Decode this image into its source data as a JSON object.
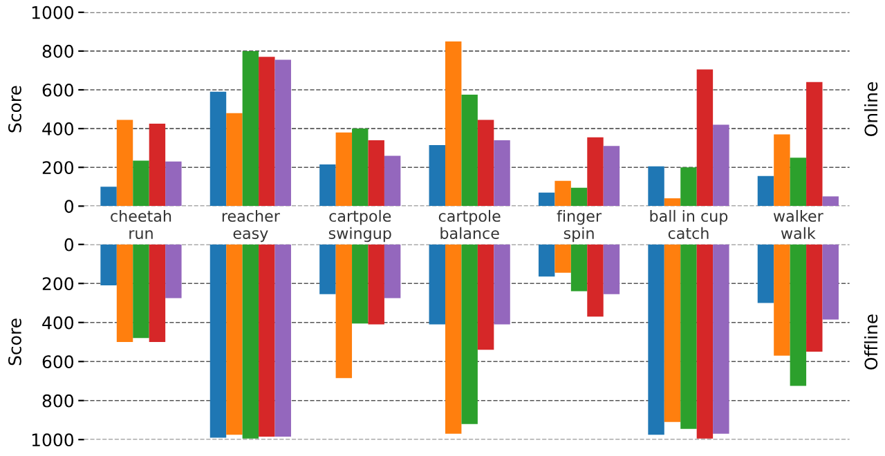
{
  "chart_data": [
    {
      "type": "bar",
      "ylabel": "Score",
      "y2label": "Online",
      "categories": [
        "cheetah\nrun",
        "reacher\neasy",
        "cartpole\nswingup",
        "cartpole\nbalance",
        "finger\nspin",
        "ball in cup\ncatch",
        "walker\nwalk"
      ],
      "ylim": [
        0,
        1000
      ],
      "yticks": [
        0,
        200,
        400,
        600,
        800,
        1000
      ],
      "grid": "y",
      "series": [
        {
          "color": "#1f77b4",
          "values": [
            100,
            590,
            215,
            315,
            70,
            205,
            155
          ]
        },
        {
          "color": "#ff7f0e",
          "values": [
            445,
            480,
            380,
            850,
            130,
            40,
            370
          ]
        },
        {
          "color": "#2ca02c",
          "values": [
            235,
            800,
            400,
            575,
            95,
            200,
            250
          ]
        },
        {
          "color": "#d62728",
          "values": [
            425,
            770,
            340,
            445,
            355,
            705,
            640
          ]
        },
        {
          "color": "#9467bd",
          "values": [
            230,
            755,
            260,
            340,
            310,
            420,
            50
          ]
        }
      ]
    },
    {
      "type": "bar",
      "ylabel": "Score",
      "y2label": "Offline",
      "categories": [
        null,
        null,
        null,
        null,
        null,
        null,
        null
      ],
      "tick_labels": "y",
      "ylim": [
        1000,
        0
      ],
      "yticks": [
        0,
        200,
        400,
        600,
        800,
        1000
      ],
      "grid": "y",
      "series": [
        {
          "color": "#1f77b4",
          "values": [
            210,
            990,
            255,
            410,
            165,
            975,
            300
          ]
        },
        {
          "color": "#ff7f0e",
          "values": [
            500,
            975,
            685,
            970,
            145,
            910,
            570
          ]
        },
        {
          "color": "#2ca02c",
          "values": [
            480,
            995,
            405,
            920,
            240,
            945,
            725
          ]
        },
        {
          "color": "#d62728",
          "values": [
            500,
            985,
            410,
            540,
            370,
            995,
            550
          ]
        },
        {
          "color": "#9467bd",
          "values": [
            275,
            985,
            275,
            410,
            255,
            970,
            385
          ]
        }
      ]
    }
  ]
}
